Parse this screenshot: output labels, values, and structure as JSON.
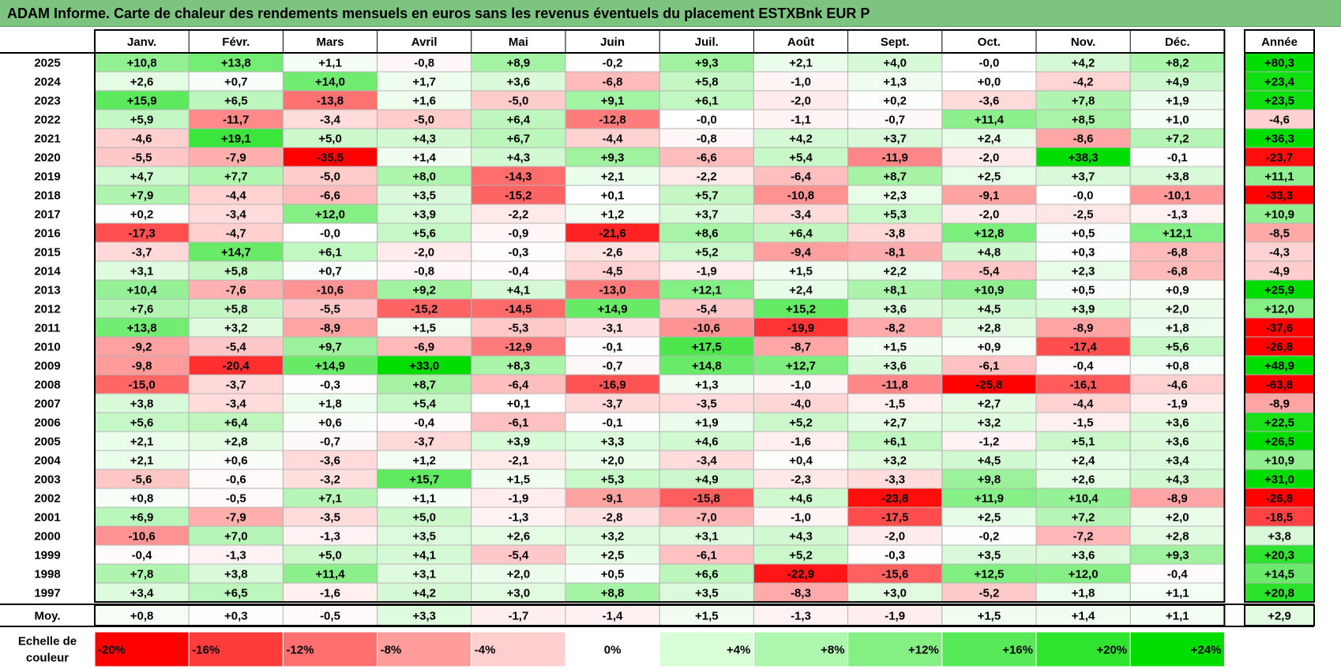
{
  "title": "ADAM Informe. Carte de chaleur des rendements mensuels en euros sans les revenus éventuels du placement ESTXBnk EUR P",
  "chart_data": {
    "type": "heatmap",
    "months": [
      "Janv.",
      "Févr.",
      "Mars",
      "Avril",
      "Mai",
      "Juin",
      "Juil.",
      "Août",
      "Sept.",
      "Oct.",
      "Nov.",
      "Déc."
    ],
    "year_header": "Année",
    "rows": [
      {
        "year": "2025",
        "values": [
          "+10,8",
          "+13,8",
          "+1,1",
          "-0,8",
          "+8,9",
          "-0,2",
          "+9,3",
          "+2,1",
          "+4,0",
          "-0,0",
          "+4,2",
          "+8,2"
        ],
        "annual": "+80,3"
      },
      {
        "year": "2024",
        "values": [
          "+2,6",
          "+0,7",
          "+14,0",
          "+1,7",
          "+3,6",
          "-6,8",
          "+5,8",
          "-1,0",
          "+1,3",
          "+0,0",
          "-4,2",
          "+4,9"
        ],
        "annual": "+23,4"
      },
      {
        "year": "2023",
        "values": [
          "+15,9",
          "+6,5",
          "-13,8",
          "+1,6",
          "-5,0",
          "+9,1",
          "+6,1",
          "-2,0",
          "+0,2",
          "-3,6",
          "+7,8",
          "+1,9"
        ],
        "annual": "+23,5"
      },
      {
        "year": "2022",
        "values": [
          "+5,9",
          "-11,7",
          "-3,4",
          "-5,0",
          "+6,4",
          "-12,8",
          "-0,0",
          "-1,1",
          "-0,7",
          "+11,4",
          "+8,5",
          "+1,0"
        ],
        "annual": "-4,6"
      },
      {
        "year": "2021",
        "values": [
          "-4,6",
          "+19,1",
          "+5,0",
          "+4,3",
          "+6,7",
          "-4,4",
          "-0,8",
          "+4,2",
          "+3,7",
          "+2,4",
          "-8,6",
          "+7,2"
        ],
        "annual": "+36,3"
      },
      {
        "year": "2020",
        "values": [
          "-5,5",
          "-7,9",
          "-35,5",
          "+1,4",
          "+4,3",
          "+9,3",
          "-6,6",
          "+5,4",
          "-11,9",
          "-2,0",
          "+38,3",
          "-0,1"
        ],
        "annual": "-23,7"
      },
      {
        "year": "2019",
        "values": [
          "+4,7",
          "+7,7",
          "-5,0",
          "+8,0",
          "-14,3",
          "+2,1",
          "-2,2",
          "-6,4",
          "+8,7",
          "+2,5",
          "+3,7",
          "+3,8"
        ],
        "annual": "+11,1"
      },
      {
        "year": "2018",
        "values": [
          "+7,9",
          "-4,4",
          "-6,6",
          "+3,5",
          "-15,2",
          "+0,1",
          "+5,7",
          "-10,8",
          "+2,3",
          "-9,1",
          "-0,0",
          "-10,1"
        ],
        "annual": "-33,3"
      },
      {
        "year": "2017",
        "values": [
          "+0,2",
          "-3,4",
          "+12,0",
          "+3,9",
          "-2,2",
          "+1,2",
          "+3,7",
          "-3,4",
          "+5,3",
          "-2,0",
          "-2,5",
          "-1,3"
        ],
        "annual": "+10,9"
      },
      {
        "year": "2016",
        "values": [
          "-17,3",
          "-4,7",
          "-0,0",
          "+5,6",
          "-0,9",
          "-21,6",
          "+8,6",
          "+6,4",
          "-3,8",
          "+12,8",
          "+0,5",
          "+12,1"
        ],
        "annual": "-8,5"
      },
      {
        "year": "2015",
        "values": [
          "-3,7",
          "+14,7",
          "+6,1",
          "-2,0",
          "-0,3",
          "-2,6",
          "+5,2",
          "-9,4",
          "-8,1",
          "+4,8",
          "+0,3",
          "-6,8"
        ],
        "annual": "-4,3"
      },
      {
        "year": "2014",
        "values": [
          "+3,1",
          "+5,8",
          "+0,7",
          "-0,8",
          "-0,4",
          "-4,5",
          "-1,9",
          "+1,5",
          "+2,2",
          "-5,4",
          "+2,3",
          "-6,8"
        ],
        "annual": "-4,9"
      },
      {
        "year": "2013",
        "values": [
          "+10,4",
          "-7,6",
          "-10,6",
          "+9,2",
          "+4,1",
          "-13,0",
          "+12,1",
          "+2,4",
          "+8,1",
          "+10,9",
          "+0,5",
          "+0,9"
        ],
        "annual": "+25,9"
      },
      {
        "year": "2012",
        "values": [
          "+7,6",
          "+5,8",
          "-5,5",
          "-15,2",
          "-14,5",
          "+14,9",
          "-5,4",
          "+15,2",
          "+3,6",
          "+4,5",
          "+3,9",
          "+2,0"
        ],
        "annual": "+12,0"
      },
      {
        "year": "2011",
        "values": [
          "+13,8",
          "+3,2",
          "-8,9",
          "+1,5",
          "-5,3",
          "-3,1",
          "-10,6",
          "-19,9",
          "-8,2",
          "+2,8",
          "-8,9",
          "+1,8"
        ],
        "annual": "-37,6"
      },
      {
        "year": "2010",
        "values": [
          "-9,2",
          "-5,4",
          "+9,7",
          "-6,9",
          "-12,9",
          "-0,1",
          "+17,5",
          "-8,7",
          "+1,5",
          "+0,9",
          "-17,4",
          "+5,6"
        ],
        "annual": "-26,8"
      },
      {
        "year": "2009",
        "values": [
          "-9,8",
          "-20,4",
          "+14,9",
          "+33,0",
          "+8,3",
          "-0,7",
          "+14,8",
          "+12,7",
          "+3,6",
          "-6,1",
          "-0,4",
          "+0,8"
        ],
        "annual": "+48,9"
      },
      {
        "year": "2008",
        "values": [
          "-15,0",
          "-3,7",
          "-0,3",
          "+8,7",
          "-6,4",
          "-16,9",
          "+1,3",
          "-1,0",
          "-11,8",
          "-25,8",
          "-16,1",
          "-4,6"
        ],
        "annual": "-63,8"
      },
      {
        "year": "2007",
        "values": [
          "+3,8",
          "-3,4",
          "+1,8",
          "+5,4",
          "+0,1",
          "-3,7",
          "-3,5",
          "-4,0",
          "-1,5",
          "+2,7",
          "-4,4",
          "-1,9"
        ],
        "annual": "-8,9"
      },
      {
        "year": "2006",
        "values": [
          "+5,6",
          "+6,4",
          "+0,6",
          "-0,4",
          "-6,1",
          "-0,1",
          "+1,9",
          "+5,2",
          "+2,7",
          "+3,2",
          "-1,5",
          "+3,6"
        ],
        "annual": "+22,5"
      },
      {
        "year": "2005",
        "values": [
          "+2,1",
          "+2,8",
          "-0,7",
          "-3,7",
          "+3,9",
          "+3,3",
          "+4,6",
          "-1,6",
          "+6,1",
          "-1,2",
          "+5,1",
          "+3,6"
        ],
        "annual": "+26,5"
      },
      {
        "year": "2004",
        "values": [
          "+2,1",
          "+0,6",
          "-3,6",
          "+1,2",
          "-2,1",
          "+2,0",
          "-3,4",
          "+0,4",
          "+3,2",
          "+4,5",
          "+2,4",
          "+3,4"
        ],
        "annual": "+10,9"
      },
      {
        "year": "2003",
        "values": [
          "-5,6",
          "-0,6",
          "-3,2",
          "+15,7",
          "+1,5",
          "+5,3",
          "+4,9",
          "-2,3",
          "-3,3",
          "+9,8",
          "+2,6",
          "+4,3"
        ],
        "annual": "+31,0"
      },
      {
        "year": "2002",
        "values": [
          "+0,8",
          "-0,5",
          "+7,1",
          "+1,1",
          "-1,9",
          "-9,1",
          "-15,8",
          "+4,6",
          "-23,8",
          "+11,9",
          "+10,4",
          "-8,9"
        ],
        "annual": "-26,8"
      },
      {
        "year": "2001",
        "values": [
          "+6,9",
          "-7,9",
          "-3,5",
          "+5,0",
          "-1,3",
          "-2,8",
          "-7,0",
          "-1,0",
          "-17,5",
          "+2,5",
          "+7,2",
          "+2,0"
        ],
        "annual": "-18,5"
      },
      {
        "year": "2000",
        "values": [
          "-10,6",
          "+7,0",
          "-1,3",
          "+3,5",
          "+2,6",
          "+3,2",
          "+3,1",
          "+4,3",
          "-2,0",
          "-0,2",
          "-7,2",
          "+2,8"
        ],
        "annual": "+3,8"
      },
      {
        "year": "1999",
        "values": [
          "-0,4",
          "-1,3",
          "+5,0",
          "+4,1",
          "-5,4",
          "+2,5",
          "-6,1",
          "+5,2",
          "-0,3",
          "+3,5",
          "+3,6",
          "+9,3"
        ],
        "annual": "+20,3"
      },
      {
        "year": "1998",
        "values": [
          "+7,8",
          "+3,8",
          "+11,4",
          "+3,1",
          "+2,0",
          "+0,5",
          "+6,6",
          "-22,9",
          "-15,6",
          "+12,5",
          "+12,0",
          "-0,4"
        ],
        "annual": "+14,5"
      },
      {
        "year": "1997",
        "values": [
          "+3,4",
          "+6,5",
          "-1,6",
          "+4,2",
          "+3,0",
          "+8,8",
          "+3,5",
          "-8,3",
          "+3,0",
          "-5,2",
          "+1,8",
          "+1,1"
        ],
        "annual": "+20,8"
      }
    ],
    "average": {
      "label": "Moy.",
      "values": [
        "+0,8",
        "+0,3",
        "-0,5",
        "+3,3",
        "-1,7",
        "-1,4",
        "+1,5",
        "-1,3",
        "-1,9",
        "+1,5",
        "+1,4",
        "+1,1"
      ],
      "annual": "+2,9"
    },
    "scale": {
      "label_line1": "Echelle de",
      "label_line2": "couleur",
      "steps": [
        {
          "text": "-20%",
          "value": -20,
          "color": "#ff0000"
        },
        {
          "text": "-16%",
          "value": -16,
          "color": "#ff3c3c"
        },
        {
          "text": "-12%",
          "value": -12,
          "color": "#ff6f6f"
        },
        {
          "text": "-8%",
          "value": -8,
          "color": "#ff9d9d"
        },
        {
          "text": "-4%",
          "value": -4,
          "color": "#ffcfcf"
        },
        {
          "text": "0%",
          "value": 0,
          "color": "#ffffff"
        },
        {
          "text": "+4%",
          "value": 4,
          "color": "#d9ffd9"
        },
        {
          "text": "+8%",
          "value": 8,
          "color": "#aef7ae"
        },
        {
          "text": "+12%",
          "value": 12,
          "color": "#84f084"
        },
        {
          "text": "+16%",
          "value": 16,
          "color": "#58e958"
        },
        {
          "text": "+20%",
          "value": 20,
          "color": "#2ee42e"
        },
        {
          "text": "+24%",
          "value": 24,
          "color": "#00dd00"
        }
      ]
    },
    "colors": {
      "negative_max": "#ff0000",
      "positive_max": "#00dd00",
      "neutral": "#ffffff",
      "title_bar": "#7cc47f"
    }
  }
}
